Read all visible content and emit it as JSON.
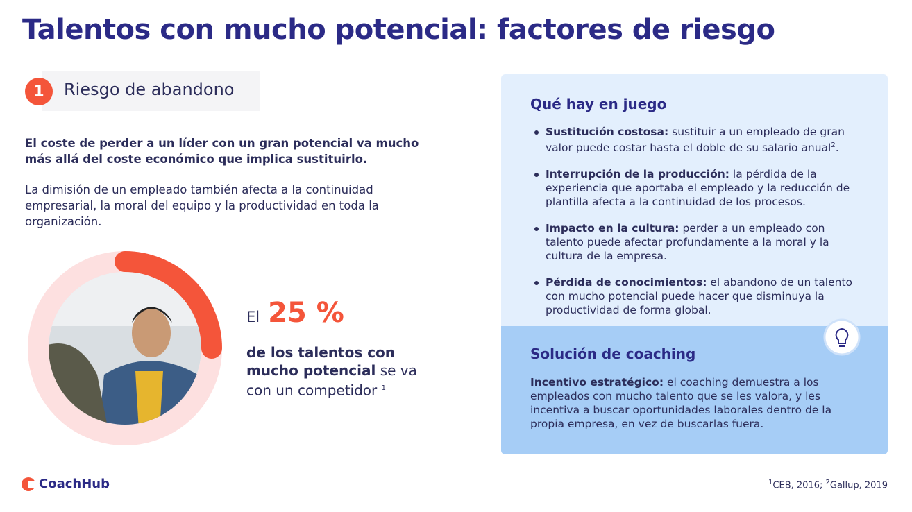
{
  "title": "Talentos con mucho potencial: factores de riesgo",
  "section": {
    "number": "1",
    "label": "Riesgo de abandono"
  },
  "intro_bold": "El coste de perder a un líder con un gran potencial va mucho más allá del coste económico que implica sustituirlo.",
  "intro": "La dimisión de un empleado también afecta a la continuidad empresarial, la moral del equipo y la productividad en toda la organización.",
  "stat": {
    "prefix": "El",
    "value": 25,
    "label": "25 %",
    "bold": "de los talentos con mucho potencial",
    "text": "se va con un competidor",
    "sup": "1"
  },
  "panel": {
    "heading": "Qué hay en juego",
    "items": [
      {
        "lead": "Sustitución costosa:",
        "text": "sustituir a un empleado de gran valor puede costar hasta el doble de su salario anual",
        "sup": "2",
        "end": "."
      },
      {
        "lead": "Interrupción de la producción:",
        "text": "la pérdida de la experiencia que aportaba el empleado y la reducción de plantilla afecta a la continuidad de los procesos."
      },
      {
        "lead": "Impacto en la cultura:",
        "text": "perder a un empleado con talento puede afectar profundamente a la moral y la cultura de la empresa."
      },
      {
        "lead": "Pérdida de conocimientos:",
        "text": "el abandono de un talento con mucho potencial puede hacer que disminuya la productividad de forma global."
      }
    ]
  },
  "solution": {
    "heading": "Solución de coaching",
    "lead": "Incentivo estratégico:",
    "text": "el coaching demuestra a los empleados con mucho talento que se les valora, y les incentiva a buscar oportunidades laborales dentro de la propia empresa, en vez de buscarlas fuera."
  },
  "logo": "CoachHub",
  "footnotes": [
    {
      "sup": "1",
      "text": "CEB, 2016;"
    },
    {
      "sup": "2",
      "text": "Gallup, 2019"
    }
  ]
}
